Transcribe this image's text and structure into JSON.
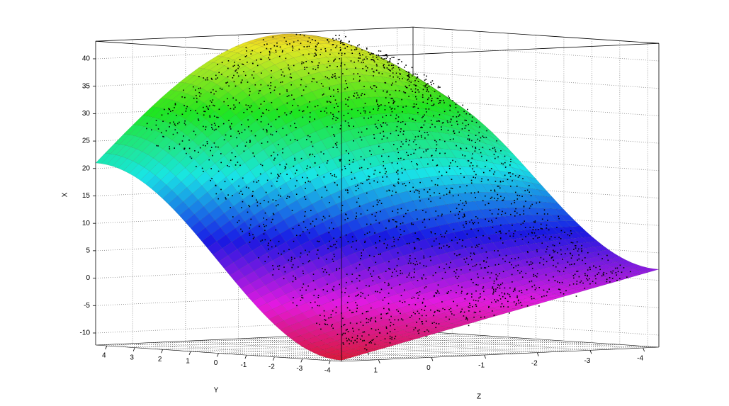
{
  "chart_data": {
    "type": "surface3d",
    "xlabel": "X",
    "ylabel": "Y",
    "zlabel": "Z",
    "xticks": [
      -10,
      -5,
      0,
      5,
      10,
      15,
      20,
      25,
      30,
      35,
      40
    ],
    "yticks": [
      4,
      3,
      2,
      1,
      0,
      -1,
      -2,
      -3,
      -4
    ],
    "zticks": [
      1,
      0,
      -1,
      -2,
      -3,
      -4
    ],
    "grid": true
  }
}
